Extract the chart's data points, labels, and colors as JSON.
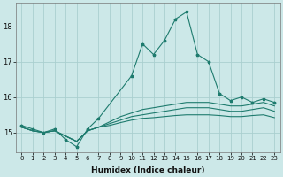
{
  "xlabel": "Humidex (Indice chaleur)",
  "ylabel": "",
  "background_color": "#cce8e8",
  "grid_color": "#aacfcf",
  "line_color": "#1e7b6e",
  "x_values": [
    0,
    1,
    2,
    3,
    4,
    5,
    6,
    7,
    8,
    9,
    10,
    11,
    12,
    13,
    14,
    15,
    16,
    17,
    18,
    19,
    20,
    21,
    22,
    23
  ],
  "series_main": [
    15.2,
    15.1,
    15.0,
    15.1,
    14.8,
    14.6,
    15.1,
    15.4,
    16.6,
    17.5,
    17.2,
    17.6,
    18.2,
    18.4,
    17.2,
    17.0,
    16.1,
    15.9,
    16.0,
    15.85,
    15.95,
    15.85
  ],
  "series_avg1": [
    15.15,
    15.05,
    15.0,
    15.05,
    14.9,
    14.75,
    15.05,
    15.15,
    15.3,
    15.45,
    15.55,
    15.65,
    15.7,
    15.75,
    15.8,
    15.85,
    15.85,
    15.85,
    15.8,
    15.75,
    15.75,
    15.8,
    15.85,
    15.75
  ],
  "series_avg2": [
    15.15,
    15.05,
    15.0,
    15.05,
    14.9,
    14.75,
    15.05,
    15.15,
    15.25,
    15.35,
    15.45,
    15.5,
    15.55,
    15.6,
    15.65,
    15.7,
    15.7,
    15.7,
    15.65,
    15.6,
    15.6,
    15.65,
    15.7,
    15.6
  ],
  "series_avg3": [
    15.15,
    15.05,
    15.0,
    15.05,
    14.9,
    14.75,
    15.05,
    15.15,
    15.2,
    15.28,
    15.35,
    15.4,
    15.42,
    15.45,
    15.48,
    15.5,
    15.5,
    15.5,
    15.48,
    15.45,
    15.45,
    15.48,
    15.5,
    15.42
  ],
  "series_x": [
    0,
    1,
    2,
    3,
    4,
    5,
    6,
    7,
    10,
    11,
    12,
    13,
    14,
    15,
    16,
    17,
    18,
    19,
    20,
    21,
    22,
    23
  ],
  "yticks": [
    15,
    16,
    17,
    18
  ],
  "ylim": [
    14.45,
    18.65
  ],
  "xlim": [
    -0.5,
    23.5
  ]
}
